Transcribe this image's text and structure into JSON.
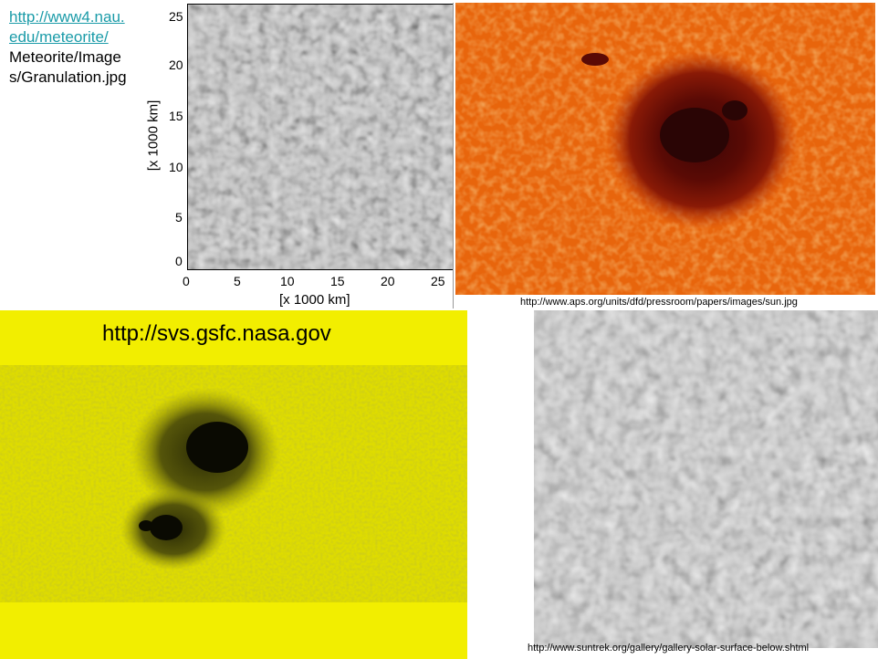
{
  "caption": {
    "link_line1": "http://www4.nau.",
    "link_line2": "edu/meteorite/",
    "path_line1": "Meteorite/Image",
    "path_line2": "s/Granulation.jpg"
  },
  "plot": {
    "y_label": "[x 1000 km]",
    "x_label": "[x 1000 km]",
    "y_ticks": [
      "25",
      "20",
      "15",
      "10",
      "5",
      "0"
    ],
    "x_ticks": [
      "0",
      "5",
      "10",
      "15",
      "20",
      "25"
    ]
  },
  "sunspot_orange": {
    "credit": "http://www.aps.org/units/dfd/pressroom/papers/images/sun.jpg"
  },
  "sunspot_yellow": {
    "title": "http://svs.gsfc.nasa.gov"
  },
  "granulation_gray": {
    "credit": "http://www.suntrek.org/gallery/gallery-solar-surface-below.shtml"
  },
  "colors": {
    "link": "#1a9ba8",
    "orange": "#f07a10",
    "yellow": "#e8e000"
  }
}
